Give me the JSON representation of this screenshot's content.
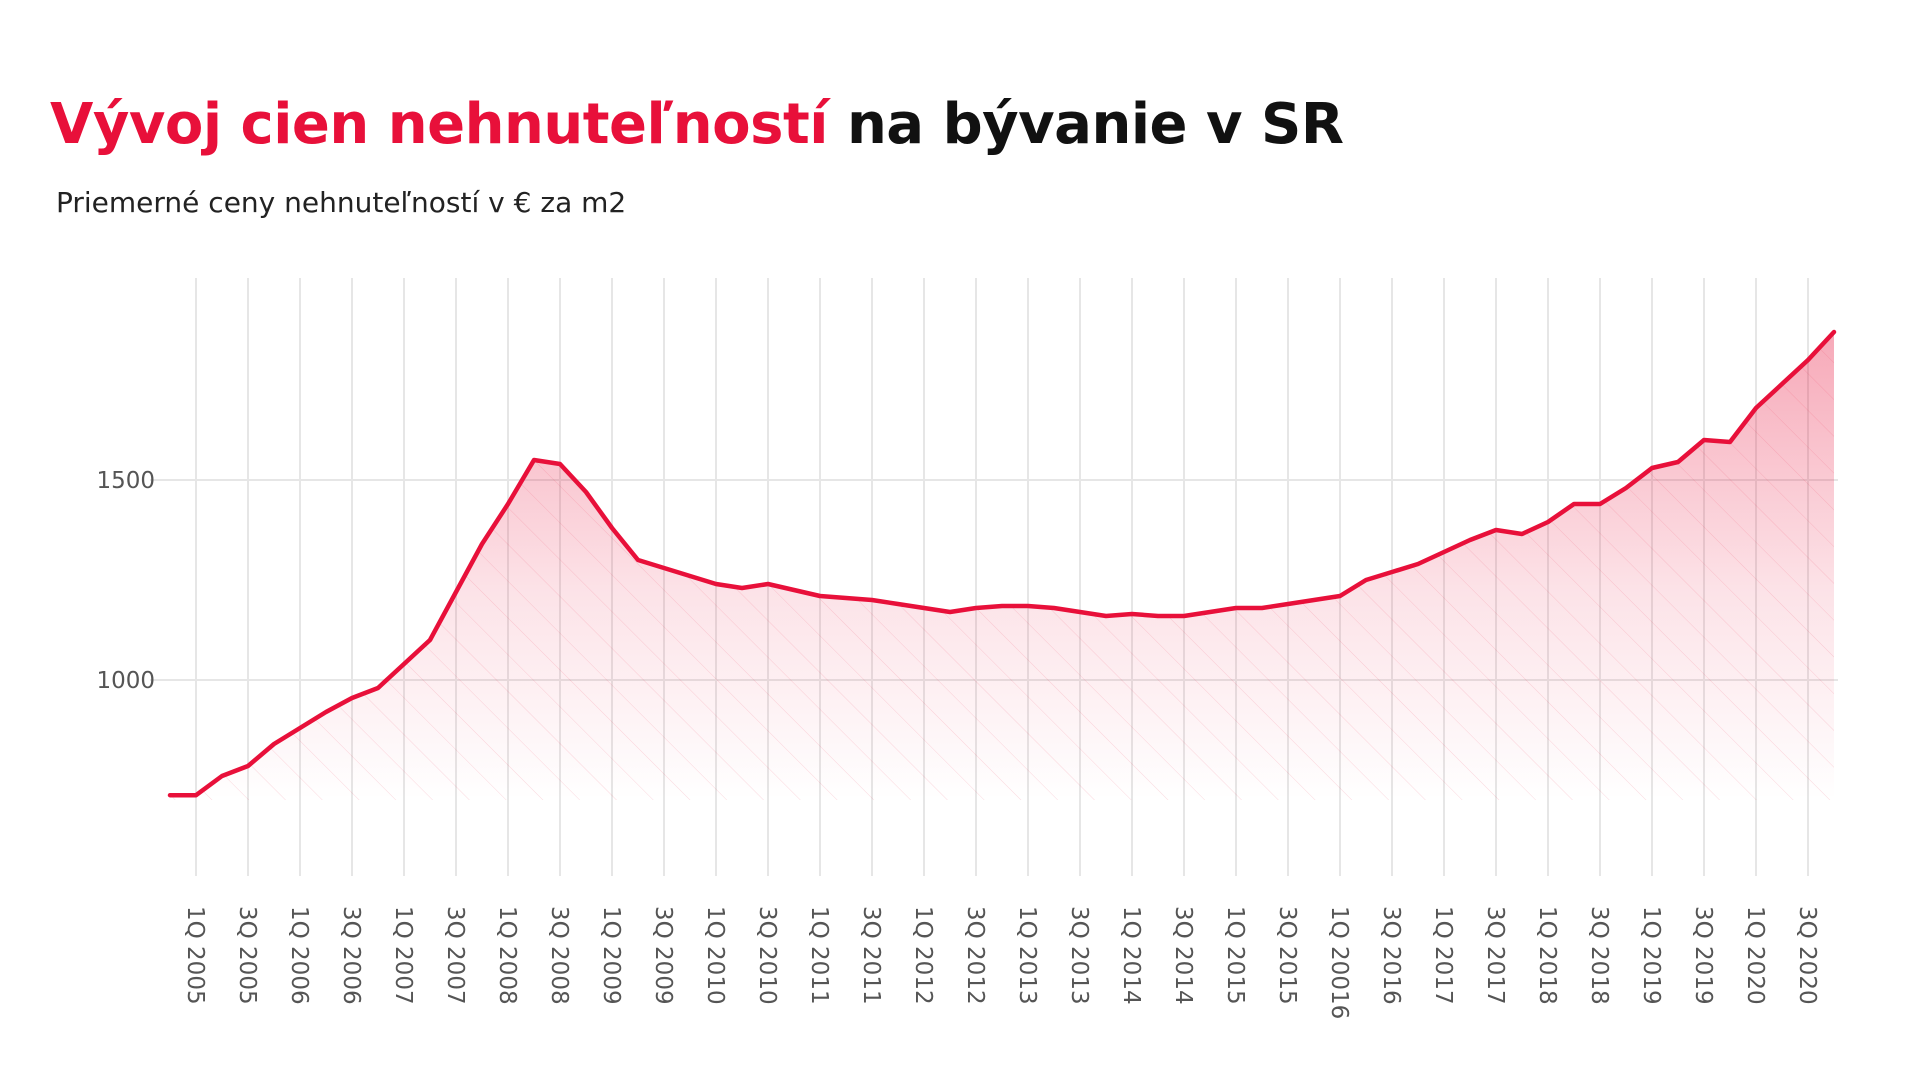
{
  "header": {
    "title_accent": "Vývoj cien nehnuteľností",
    "title_rest": "na bývanie v SR",
    "subtitle": "Priemerné ceny nehnuteľností v € za m2"
  },
  "colors": {
    "accent": "#e8103a",
    "grid": "#e6e6e6",
    "tick_text": "#555555",
    "title_dark": "#111111"
  },
  "chart_data": {
    "type": "area",
    "title": "Vývoj cien nehnuteľností na bývanie v SR",
    "subtitle": "Priemerné ceny nehnuteľností v € za m2",
    "xlabel": "",
    "ylabel": "",
    "ylim": [
      500,
      2000
    ],
    "yticks": [
      1000,
      1500
    ],
    "grid": true,
    "x_tick_labels": [
      "1Q 2005",
      "3Q 2005",
      "1Q 2006",
      "3Q 2006",
      "1Q 2007",
      "3Q 2007",
      "1Q 2008",
      "3Q 2008",
      "1Q 2009",
      "3Q 2009",
      "1Q 2010",
      "3Q 2010",
      "1Q 2011",
      "3Q 2011",
      "1Q 2012",
      "3Q 2012",
      "1Q 2013",
      "3Q 2013",
      "1Q 2014",
      "3Q 2014",
      "1Q 2015",
      "3Q 2015",
      "1Q 20016",
      "3Q 2016",
      "1Q 2017",
      "3Q 2017",
      "1Q 2018",
      "3Q 2018",
      "1Q 2019",
      "3Q 2019",
      "1Q 2020",
      "3Q 2020"
    ],
    "series": [
      {
        "values": [
          712,
          712,
          760,
          785,
          840,
          880,
          920,
          955,
          980,
          1040,
          1100,
          1220,
          1340,
          1440,
          1550,
          1540,
          1470,
          1380,
          1300,
          1280,
          1260,
          1240,
          1230,
          1240,
          1225,
          1210,
          1205,
          1200,
          1190,
          1180,
          1170,
          1180,
          1185,
          1185,
          1180,
          1170,
          1160,
          1165,
          1160,
          1160,
          1170,
          1180,
          1180,
          1190,
          1200,
          1210,
          1250,
          1270,
          1290,
          1320,
          1350,
          1375,
          1365,
          1395,
          1440,
          1440,
          1480,
          1530,
          1545,
          1600,
          1595,
          1680,
          1740,
          1800,
          1870
        ]
      }
    ]
  }
}
